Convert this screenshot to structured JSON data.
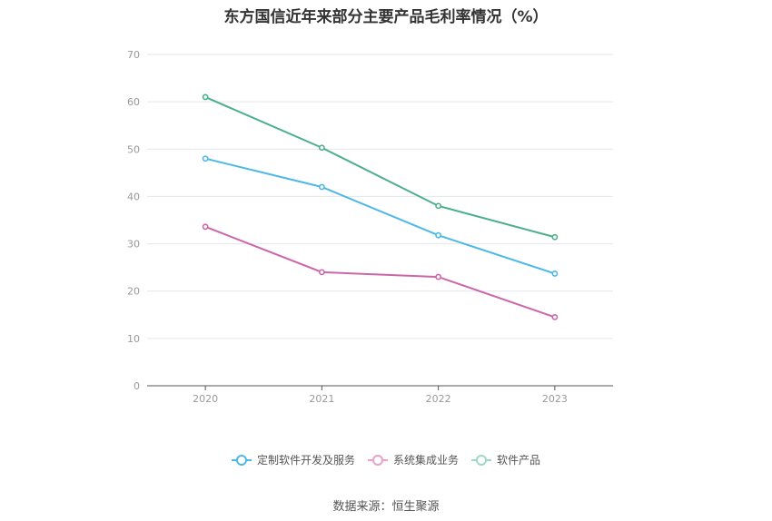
{
  "title": "东方国信近年来部分主要产品毛利率情况（%）",
  "source": "数据来源：恒生聚源",
  "chart_data": {
    "type": "line",
    "title": "东方国信近年来部分主要产品毛利率情况（%）",
    "categories": [
      "2020",
      "2021",
      "2022",
      "2023"
    ],
    "ylim": [
      0,
      70
    ],
    "yticks": [
      "0",
      "10",
      "20",
      "30",
      "40",
      "50",
      "60",
      "70"
    ],
    "grid": true,
    "legend_position": "bottom",
    "series": [
      {
        "name": "定制软件开发及服务",
        "color": "#4cb8e8",
        "values": [
          48.0,
          42.0,
          31.8,
          23.7
        ]
      },
      {
        "name": "系统集成业务",
        "color": "#cc66aa",
        "values": [
          33.6,
          24.0,
          23.0,
          14.5
        ]
      },
      {
        "name": "软件产品",
        "color": "#4caf8a",
        "values": [
          61.0,
          50.3,
          38.0,
          31.4
        ]
      }
    ]
  }
}
